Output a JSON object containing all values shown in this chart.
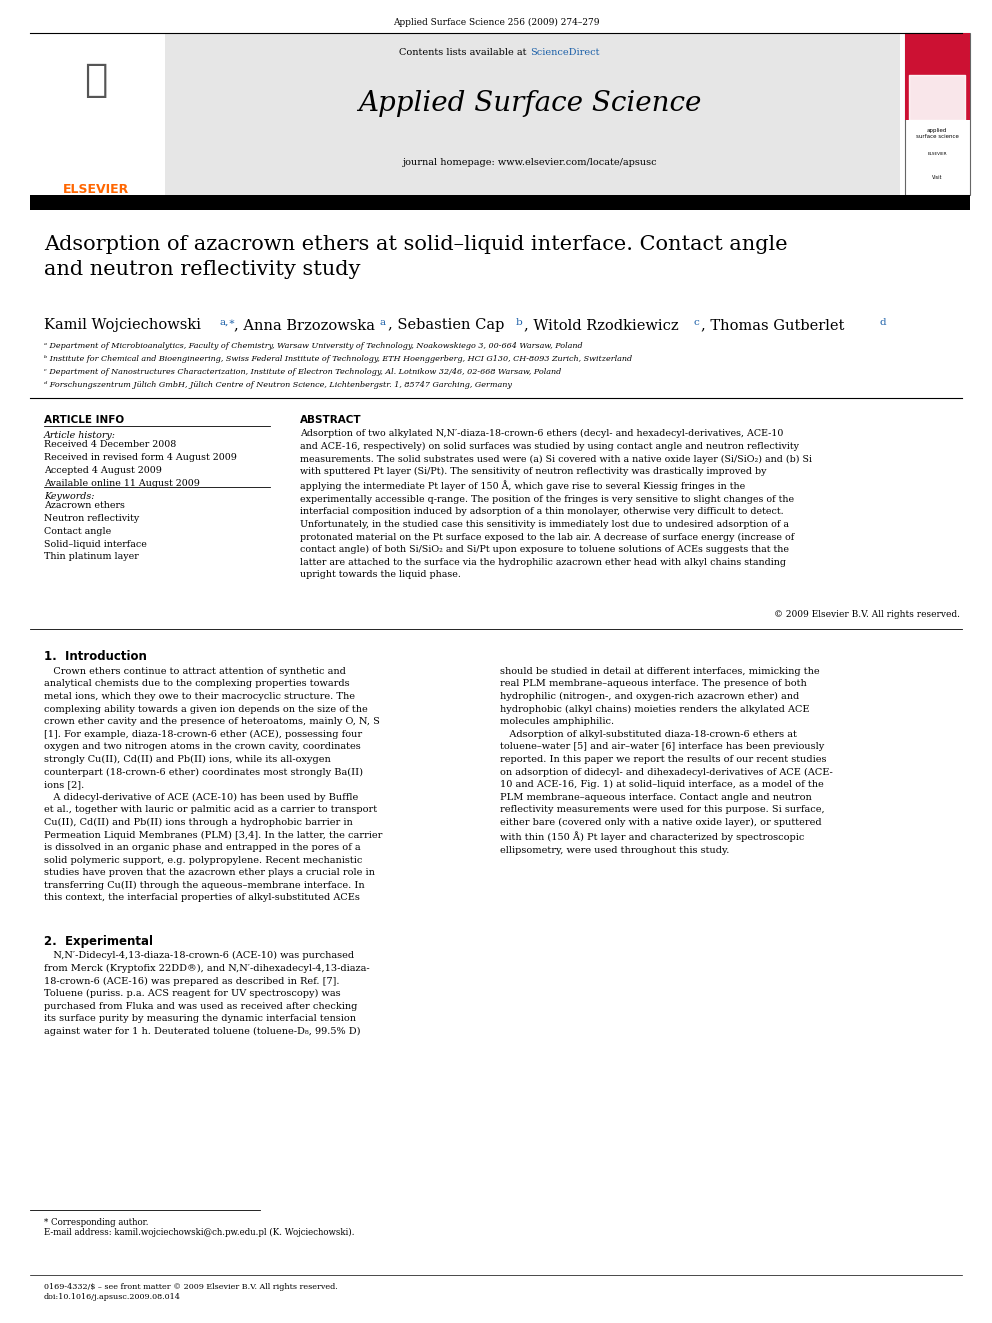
{
  "page_width": 9.92,
  "page_height": 13.23,
  "bg_color": "#ffffff",
  "header_journal": "Applied Surface Science 256 (2009) 274–279",
  "header_contents": "Contents lists available at ",
  "header_sciencedirect": "ScienceDirect",
  "header_journal_name": "Applied Surface Science",
  "header_homepage": "journal homepage: www.elsevier.com/locate/apsusc",
  "header_bg": "#e6e6e6",
  "title": "Adsorption of azacrown ethers at solid–liquid interface. Contact angle\nand neutron reflectivity study",
  "affil_a": "ᵃ Department of Microbioanalytics, Faculty of Chemistry, Warsaw University of Technology, Noakowskiego 3, 00-664 Warsaw, Poland",
  "affil_b": "ᵇ Institute for Chemical and Bioengineering, Swiss Federal Institute of Technology, ETH Hoenggerberg, HCI G130, CH-8093 Zurich, Switzerland",
  "affil_c": "ᶜ Department of Nanostructures Characterization, Institute of Electron Technology, Al. Lotnikow 32/46, 02-668 Warsaw, Poland",
  "affil_d": "ᵈ Forschungszentrum Jülich GmbH, Jülich Centre of Neutron Science, Lichtenbergstr. 1, 85747 Garching, Germany",
  "article_info_title": "ARTICLE INFO",
  "article_history_title": "Article history:",
  "article_history": "Received 4 December 2008\nReceived in revised form 4 August 2009\nAccepted 4 August 2009\nAvailable online 11 August 2009",
  "keywords_title": "Keywords:",
  "keywords": "Azacrown ethers\nNeutron reflectivity\nContact angle\nSolid–liquid interface\nThin platinum layer",
  "abstract_title": "ABSTRACT",
  "abstract_text": "Adsorption of two alkylated N,N′-diaza-18-crown-6 ethers (decyl- and hexadecyl-derivatives, ACE-10\nand ACE-16, respectively) on solid surfaces was studied by using contact angle and neutron reflectivity\nmeasurements. The solid substrates used were (a) Si covered with a native oxide layer (Si/SiO₂) and (b) Si\nwith sputtered Pt layer (Si/Pt). The sensitivity of neutron reflectivity was drastically improved by\napplying the intermediate Pt layer of 150 Å, which gave rise to several Kiessig fringes in the\nexperimentally accessible q-range. The position of the fringes is very sensitive to slight changes of the\ninterfacial composition induced by adsorption of a thin monolayer, otherwise very difficult to detect.\nUnfortunately, in the studied case this sensitivity is immediately lost due to undesired adsorption of a\nprotonated material on the Pt surface exposed to the lab air. A decrease of surface energy (increase of\ncontact angle) of both Si/SiO₂ and Si/Pt upon exposure to toluene solutions of ACEs suggests that the\nlatter are attached to the surface via the hydrophilic azacrown ether head with alkyl chains standing\nupright towards the liquid phase.",
  "copyright": "© 2009 Elsevier B.V. All rights reserved.",
  "section1_title": "1.  Introduction",
  "section1_col1": "   Crown ethers continue to attract attention of synthetic and\nanalytical chemists due to the complexing properties towards\nmetal ions, which they owe to their macrocyclic structure. The\ncomplexing ability towards a given ion depends on the size of the\ncrown ether cavity and the presence of heteroatoms, mainly O, N, S\n[1]. For example, diaza-18-crown-6 ether (ACE), possessing four\noxygen and two nitrogen atoms in the crown cavity, coordinates\nstrongly Cu(II), Cd(II) and Pb(II) ions, while its all-oxygen\ncounterpart (18-crown-6 ether) coordinates most strongly Ba(II)\nions [2].\n   A didecyl-derivative of ACE (ACE-10) has been used by Buffle\net al., together with lauric or palmitic acid as a carrier to transport\nCu(II), Cd(II) and Pb(II) ions through a hydrophobic barrier in\nPermeation Liquid Membranes (PLM) [3,4]. In the latter, the carrier\nis dissolved in an organic phase and entrapped in the pores of a\nsolid polymeric support, e.g. polypropylene. Recent mechanistic\nstudies have proven that the azacrown ether plays a crucial role in\ntransferring Cu(II) through the aqueous–membrane interface. In\nthis context, the interfacial properties of alkyl-substituted ACEs",
  "section1_col2": "should be studied in detail at different interfaces, mimicking the\nreal PLM membrane–aqueous interface. The presence of both\nhydrophilic (nitrogen-, and oxygen-rich azacrown ether) and\nhydrophobic (alkyl chains) moieties renders the alkylated ACE\nmolecules amphiphilic.\n   Adsorption of alkyl-substituted diaza-18-crown-6 ethers at\ntoluene–water [5] and air–water [6] interface has been previously\nreported. In this paper we report the results of our recent studies\non adsorption of didecyl- and dihexadecyl-derivatives of ACE (ACE-\n10 and ACE-16, Fig. 1) at solid–liquid interface, as a model of the\nPLM membrane–aqueous interface. Contact angle and neutron\nreflectivity measurements were used for this purpose. Si surface,\neither bare (covered only with a native oxide layer), or sputtered\nwith thin (150 Å) Pt layer and characterized by spectroscopic\nellipsometry, were used throughout this study.",
  "section2_title": "2.  Experimental",
  "section2_text": "   N,N′-Didecyl-4,13-diaza-18-crown-6 (ACE-10) was purchased\nfrom Merck (Kryptofix 22DD®), and N,N′-dihexadecyl-4,13-diaza-\n18-crown-6 (ACE-16) was prepared as described in Ref. [7].\nToluene (puriss. p.a. ACS reagent for UV spectroscopy) was\npurchased from Fluka and was used as received after checking\nits surface purity by measuring the dynamic interfacial tension\nagainst water for 1 h. Deuterated toluene (toluene-D₈, 99.5% D)",
  "footnote_corresponding": "* Corresponding author.",
  "footnote_email": "E-mail address: kamil.wojciechowski@ch.pw.edu.pl (K. Wojciechowski).",
  "footer_issn": "0169-4332/$ – see front matter © 2009 Elsevier B.V. All rights reserved.",
  "footer_doi": "doi:10.1016/j.apsusc.2009.08.014"
}
